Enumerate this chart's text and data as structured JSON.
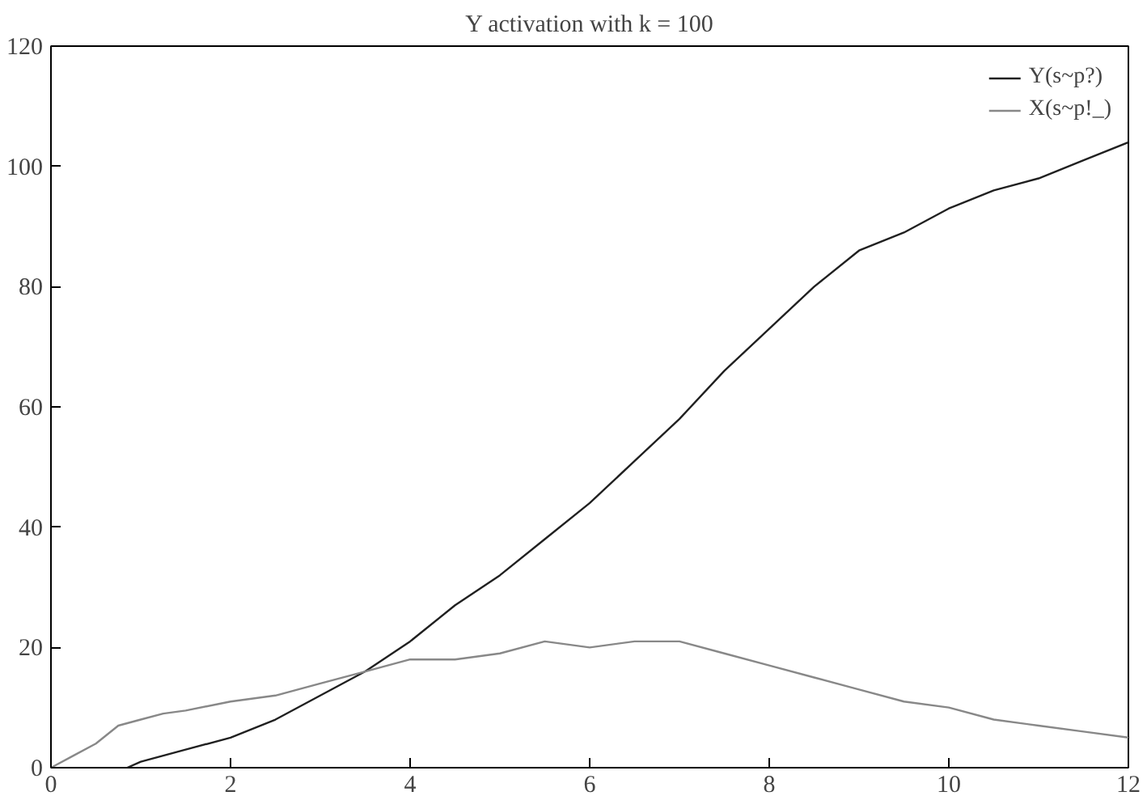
{
  "chart_data": {
    "type": "line",
    "title": "Y activation with k = 100",
    "xlim": [
      0,
      12
    ],
    "xticks": [
      0,
      2,
      4,
      6,
      8,
      10,
      12
    ],
    "ylim": [
      0,
      120
    ],
    "yticks": [
      0,
      20,
      40,
      60,
      80,
      100,
      120
    ],
    "grid": false,
    "legend": "top right",
    "series": [
      {
        "name": "Y(s~p?)",
        "color": "#202020",
        "x": [
          0.85,
          1,
          1.5,
          2,
          2.5,
          3,
          3.5,
          4,
          4.5,
          5,
          5.5,
          6,
          6.5,
          7,
          7.5,
          8,
          8.5,
          9,
          9.5,
          10,
          10.5,
          11,
          11.5,
          12
        ],
        "values": [
          0,
          1,
          3,
          5,
          8,
          12,
          16,
          21,
          27,
          32,
          38,
          44,
          51,
          58,
          66,
          73,
          80,
          86,
          89,
          93,
          96,
          98,
          101,
          104
        ]
      },
      {
        "name": "X(s~p!_)",
        "color": "#888888",
        "x": [
          0,
          0.25,
          0.5,
          0.75,
          1,
          1.25,
          1.5,
          2,
          2.5,
          3,
          3.5,
          4,
          4.5,
          5,
          5.5,
          6,
          6.5,
          7,
          7.5,
          8,
          8.5,
          9,
          9.5,
          10,
          10.5,
          11,
          11.5,
          12
        ],
        "values": [
          0,
          2,
          4,
          7,
          8,
          9,
          9.5,
          11,
          12,
          14,
          16,
          18,
          18,
          19,
          21,
          20,
          21,
          21,
          19,
          17,
          15,
          13,
          11,
          10,
          8,
          7,
          6,
          5
        ]
      }
    ]
  }
}
